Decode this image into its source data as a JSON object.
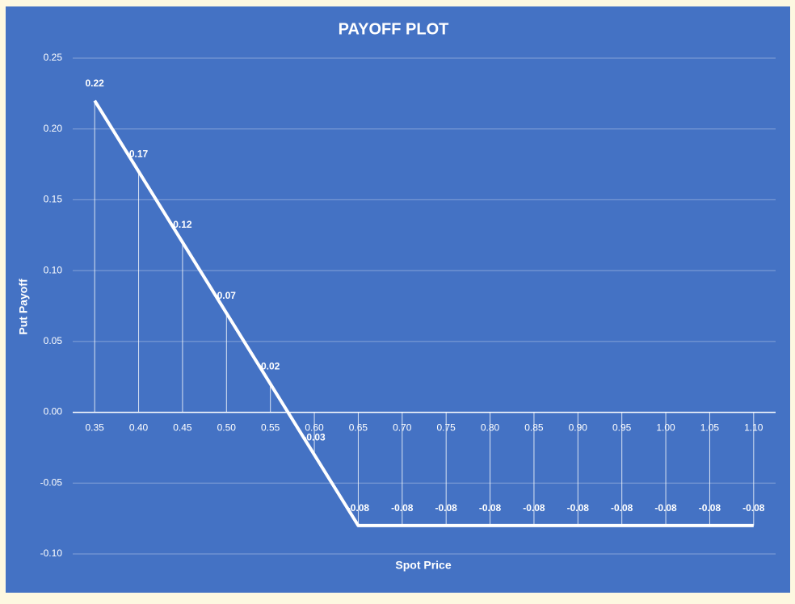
{
  "chart_data": {
    "type": "line",
    "title": "PAYOFF  PLOT",
    "x_label": "Spot Price",
    "y_label": "Put  Payoff",
    "categories": [
      "0.35",
      "0.40",
      "0.45",
      "0.50",
      "0.55",
      "0.60",
      "0.65",
      "0.70",
      "0.75",
      "0.80",
      "0.85",
      "0.90",
      "0.95",
      "1.00",
      "1.05",
      "1.10"
    ],
    "series": [
      {
        "name": "Put Payoff",
        "color": "#ffffff",
        "values": [
          0.22,
          0.17,
          0.12,
          0.07,
          0.02,
          -0.03,
          -0.08,
          -0.08,
          -0.08,
          -0.08,
          -0.08,
          -0.08,
          -0.08,
          -0.08,
          -0.08,
          -0.08
        ]
      }
    ],
    "ylim": [
      -0.1,
      0.25
    ],
    "yticks": [
      0.25,
      {
        "value": 0.2,
        "label": "0.20"
      },
      0.15,
      {
        "value": 0.1,
        "label": "0.10"
      },
      0.05,
      {
        "value": 0,
        "label": "0.00"
      },
      -0.05,
      {
        "value": -0.1,
        "label": "-0.10"
      }
    ],
    "grid": true,
    "drop_lines": true,
    "data_labels": true
  }
}
